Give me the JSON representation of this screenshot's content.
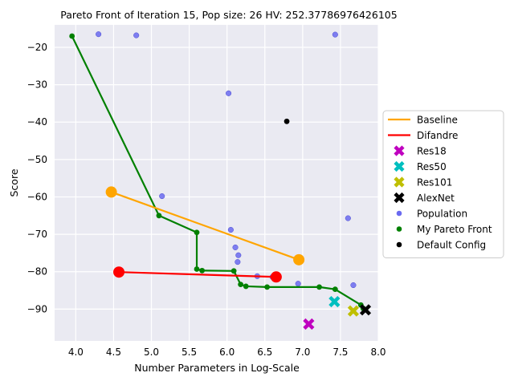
{
  "chart_data": {
    "type": "scatter",
    "title": "Pareto Front of Iteration 15, Pop size: 26 HV: 252.37786976426105",
    "xlabel": "Number Parameters in Log-Scale",
    "ylabel": "Score",
    "xlim": [
      3.72,
      8.0
    ],
    "ylim": [
      -98.5,
      -14.0
    ],
    "x_ticks": [
      4.0,
      4.5,
      5.0,
      5.5,
      6.0,
      6.5,
      7.0,
      7.5,
      8.0
    ],
    "x_tick_labels": [
      "4.0",
      "4.5",
      "5.0",
      "5.5",
      "6.0",
      "6.5",
      "7.0",
      "7.5",
      "8.0"
    ],
    "y_ticks": [
      -20,
      -30,
      -40,
      -50,
      -60,
      -70,
      -80,
      -90
    ],
    "y_tick_labels": [
      "−20",
      "−30",
      "−40",
      "−50",
      "−60",
      "−70",
      "−80",
      "−90"
    ],
    "grid": true,
    "background": "#eaeaf2",
    "legend_position": "right",
    "legend": [
      {
        "label": "Baseline",
        "kind": "line",
        "color": "#ffa500"
      },
      {
        "label": "Difandre",
        "kind": "line",
        "color": "#ff0000"
      },
      {
        "label": "Res18",
        "kind": "x",
        "color": "#bf00bf"
      },
      {
        "label": "Res50",
        "kind": "x",
        "color": "#00bfbf"
      },
      {
        "label": "Res101",
        "kind": "x",
        "color": "#bfbf00"
      },
      {
        "label": "AlexNet",
        "kind": "x",
        "color": "#000000"
      },
      {
        "label": "Population",
        "kind": "dot",
        "color": "#6a6af0"
      },
      {
        "label": "My Pareto Front",
        "kind": "dot",
        "color": "#008000"
      },
      {
        "label": "Default Config",
        "kind": "dot",
        "color": "#000000"
      }
    ],
    "series": [
      {
        "name": "Population",
        "type": "scatter",
        "color": "#6a6af0",
        "points": [
          [
            4.3,
            -16.5
          ],
          [
            4.8,
            -16.8
          ],
          [
            7.43,
            -16.6
          ],
          [
            6.02,
            -32.3
          ],
          [
            5.14,
            -59.8
          ],
          [
            6.05,
            -68.8
          ],
          [
            7.6,
            -65.7
          ],
          [
            6.11,
            -73.5
          ],
          [
            6.15,
            -75.6
          ],
          [
            6.14,
            -77.4
          ],
          [
            6.4,
            -81.2
          ],
          [
            6.6,
            -81.4
          ],
          [
            6.94,
            -83.2
          ],
          [
            7.67,
            -83.6
          ],
          [
            6.65,
            -81.6
          ]
        ]
      },
      {
        "name": "My Pareto Front",
        "type": "line",
        "color": "#008000",
        "points": [
          [
            3.95,
            -17.0
          ],
          [
            5.1,
            -65.0
          ],
          [
            5.6,
            -69.5
          ],
          [
            5.6,
            -79.3
          ],
          [
            5.67,
            -79.7
          ],
          [
            6.09,
            -79.8
          ],
          [
            6.18,
            -83.4
          ],
          [
            6.25,
            -83.9
          ],
          [
            6.53,
            -84.1
          ],
          [
            7.22,
            -84.1
          ],
          [
            7.43,
            -84.7
          ],
          [
            7.77,
            -88.9
          ],
          [
            7.8,
            -89.8
          ]
        ]
      },
      {
        "name": "Baseline",
        "type": "line",
        "color": "#ffa500",
        "points": [
          [
            4.47,
            -58.7
          ],
          [
            6.95,
            -76.8
          ]
        ]
      },
      {
        "name": "Difandre",
        "type": "line",
        "color": "#ff0000",
        "points": [
          [
            4.57,
            -80.1
          ],
          [
            6.65,
            -81.4
          ]
        ]
      },
      {
        "name": "Default Config",
        "type": "scatter",
        "color": "#000000",
        "points": [
          [
            6.79,
            -39.8
          ]
        ]
      },
      {
        "name": "Res18",
        "type": "x",
        "color": "#bf00bf",
        "points": [
          [
            7.08,
            -94.0
          ]
        ]
      },
      {
        "name": "Res50",
        "type": "x",
        "color": "#00bfbf",
        "points": [
          [
            7.42,
            -88.0
          ]
        ]
      },
      {
        "name": "Res101",
        "type": "x",
        "color": "#bfbf00",
        "points": [
          [
            7.67,
            -90.5
          ]
        ]
      },
      {
        "name": "AlexNet",
        "type": "x",
        "color": "#000000",
        "points": [
          [
            7.83,
            -90.2
          ]
        ]
      }
    ]
  }
}
